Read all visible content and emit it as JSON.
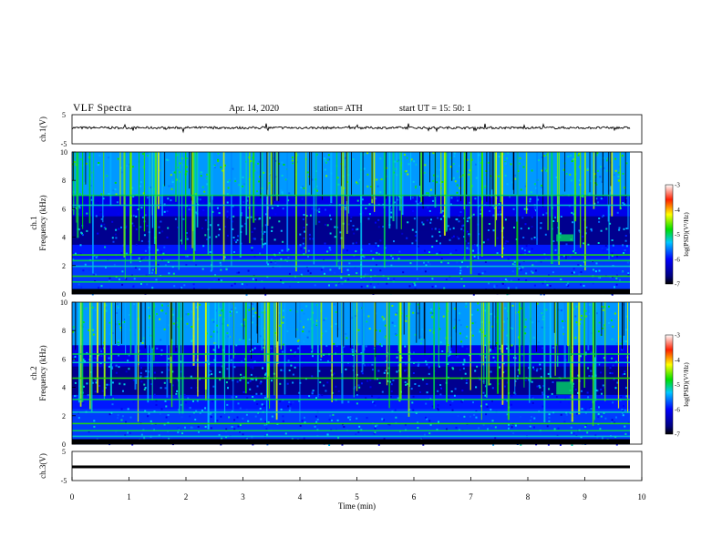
{
  "header": {
    "title": "VLF Spectra",
    "date": "Apr. 14, 2020",
    "station": "station= ATH",
    "start": "start UT =   15: 50: 1"
  },
  "chart_data": [
    {
      "type": "line",
      "title": "",
      "ylabel": "ch.1(V)",
      "ylim": [
        -5,
        5
      ],
      "yticks": [
        "5",
        "-5"
      ],
      "series": [
        {
          "name": "",
          "x_range_min": [
            0,
            9.8
          ],
          "baseline_v": 0.5,
          "noise_amplitude_v": 0.4
        }
      ]
    },
    {
      "type": "heatmap",
      "ylabel": "ch.1\nFrequency (kHz)",
      "ylim": [
        0,
        10
      ],
      "xlim": [
        0,
        10
      ],
      "yticks": [
        "0",
        "2",
        "4",
        "6",
        "8",
        "10"
      ],
      "colorbar": {
        "label": "log(PSD)(V²/Hz)",
        "range": [
          -7,
          -3
        ],
        "ticks": [
          "-3",
          "-4",
          "-5",
          "-6",
          "-7"
        ]
      },
      "bands_khz": [
        0.3,
        0.9,
        1.3,
        2.0,
        2.4,
        2.8,
        6.3,
        7.0
      ],
      "strong_feature": {
        "x_min": [
          8.5,
          8.8
        ],
        "y_khz": [
          3.7,
          4.2
        ]
      }
    },
    {
      "type": "heatmap",
      "ylabel": "ch.2\nFrequency (kHz)",
      "ylim": [
        0,
        10
      ],
      "xlim": [
        0,
        10
      ],
      "yticks": [
        "0",
        "2",
        "4",
        "6",
        "8",
        "10"
      ],
      "colorbar": {
        "label": "log(PSD)(V²/Hz)",
        "range": [
          -7,
          -3
        ],
        "ticks": [
          "-3",
          "-4",
          "-5",
          "-6",
          "-7"
        ]
      },
      "bands_khz": [
        0.6,
        1.0,
        1.5,
        2.3,
        3.2,
        4.7,
        5.8,
        6.4
      ],
      "strong_feature": {
        "x_min": [
          8.5,
          8.8
        ],
        "y_khz": [
          3.5,
          4.4
        ]
      }
    },
    {
      "type": "line",
      "ylabel": "ch.3(V)",
      "ylim": [
        -5,
        5
      ],
      "yticks": [
        "5",
        "0",
        "-5"
      ],
      "series": [
        {
          "name": "",
          "x_range_min": [
            0,
            9.8
          ],
          "constant_v": -0.3
        }
      ]
    }
  ],
  "xaxis": {
    "label": "Time (min)",
    "ticks": [
      "0",
      "1",
      "2",
      "3",
      "4",
      "5",
      "6",
      "7",
      "8",
      "9",
      "10"
    ],
    "xlim": [
      0,
      10
    ]
  }
}
